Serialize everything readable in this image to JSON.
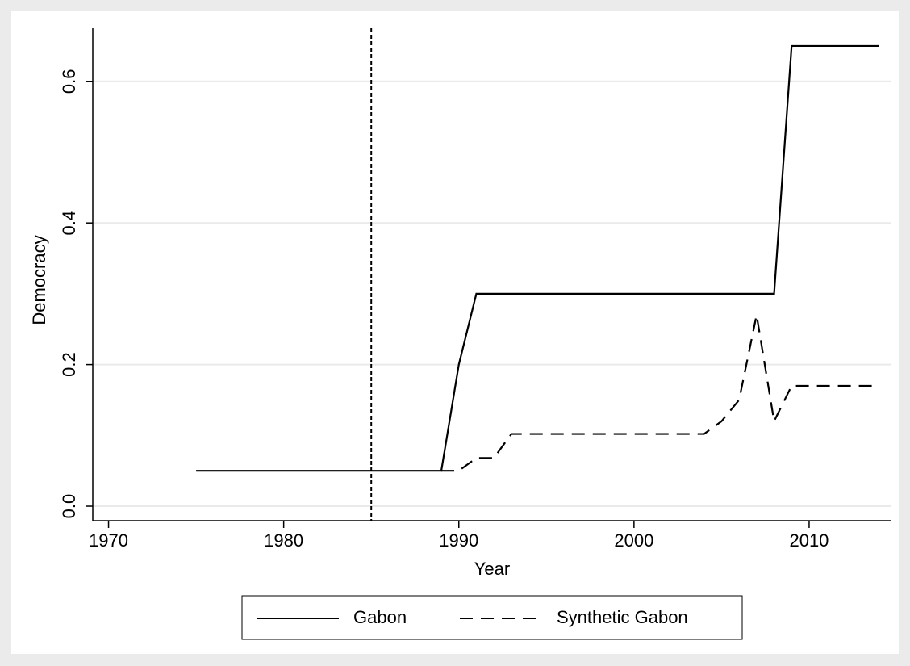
{
  "chart_data": {
    "type": "line",
    "xlabel": "Year",
    "ylabel": "Democracy",
    "x": [
      1975,
      1976,
      1977,
      1978,
      1979,
      1980,
      1981,
      1982,
      1983,
      1984,
      1985,
      1986,
      1987,
      1988,
      1989,
      1990,
      1991,
      1992,
      1993,
      1994,
      1995,
      1996,
      1997,
      1998,
      1999,
      2000,
      2001,
      2002,
      2003,
      2004,
      2005,
      2006,
      2007,
      2008,
      2009,
      2010,
      2011,
      2012,
      2013,
      2014
    ],
    "series": [
      {
        "name": "Gabon",
        "color": "#000000",
        "dash": "solid",
        "values": [
          0.05,
          0.05,
          0.05,
          0.05,
          0.05,
          0.05,
          0.05,
          0.05,
          0.05,
          0.05,
          0.05,
          0.05,
          0.05,
          0.05,
          0.05,
          0.2,
          0.3,
          0.3,
          0.3,
          0.3,
          0.3,
          0.3,
          0.3,
          0.3,
          0.3,
          0.3,
          0.3,
          0.3,
          0.3,
          0.3,
          0.3,
          0.3,
          0.3,
          0.3,
          0.65,
          0.65,
          0.65,
          0.65,
          0.65,
          0.65
        ]
      },
      {
        "name": "Synthetic Gabon",
        "color": "#000000",
        "dash": "dashed",
        "values": [
          null,
          null,
          null,
          null,
          null,
          null,
          null,
          null,
          null,
          null,
          null,
          null,
          null,
          null,
          0.05,
          0.05,
          0.068,
          0.068,
          0.102,
          0.102,
          0.102,
          0.102,
          0.102,
          0.102,
          0.102,
          0.102,
          0.102,
          0.102,
          0.102,
          0.102,
          0.12,
          0.15,
          0.27,
          0.12,
          0.17,
          0.17,
          0.17,
          0.17,
          0.17,
          0.17
        ]
      }
    ],
    "xlim": [
      1969.1,
      2014.7
    ],
    "xticks": [
      1970,
      1980,
      1990,
      2000,
      2010
    ],
    "ylim": [
      -0.0205,
      0.675
    ],
    "yticks": [
      {
        "value": 0,
        "label": "0.0"
      },
      0.2,
      0.4,
      0.6
    ],
    "xline": 1985,
    "grid": true,
    "legend": "bottom"
  }
}
